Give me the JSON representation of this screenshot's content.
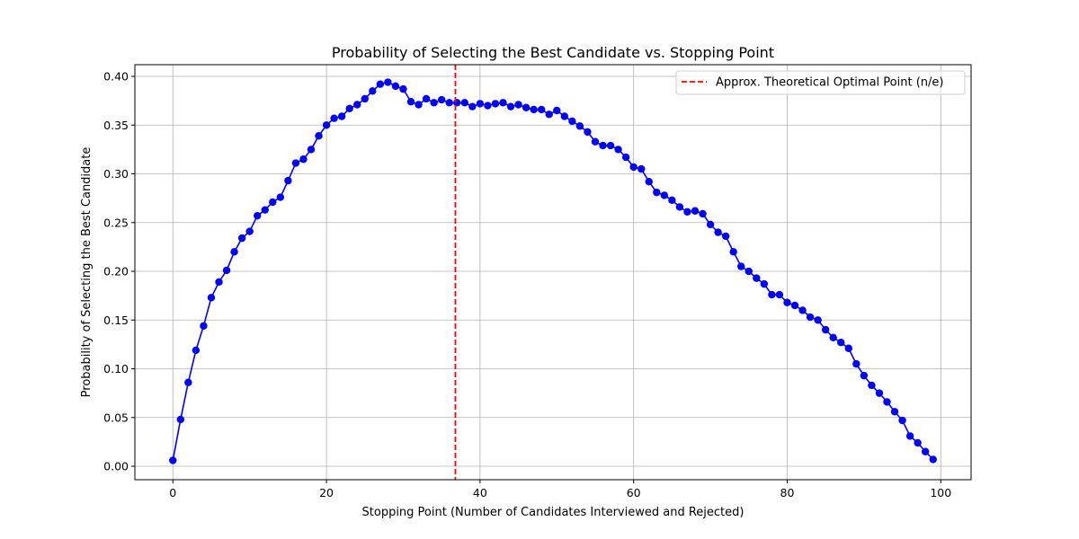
{
  "chart_data": {
    "type": "line",
    "title": "Probability of Selecting the Best Candidate vs. Stopping Point",
    "xlabel": "Stopping Point (Number of Candidates Interviewed and Rejected)",
    "ylabel": "Probability of Selecting the Best Candidate",
    "xlim": [
      -4.95,
      103.95
    ],
    "ylim": [
      -0.0138,
      0.412
    ],
    "xticks": [
      0,
      20,
      40,
      60,
      80,
      100
    ],
    "yticks": [
      0.0,
      0.05,
      0.1,
      0.15,
      0.2,
      0.25,
      0.3,
      0.35,
      0.4
    ],
    "grid": true,
    "legend_position": "top-right",
    "series": [
      {
        "name": "",
        "color": "#0000ff",
        "marker": "circle",
        "x": [
          0,
          1,
          2,
          3,
          4,
          5,
          6,
          7,
          8,
          9,
          10,
          11,
          12,
          13,
          14,
          15,
          16,
          17,
          18,
          19,
          20,
          21,
          22,
          23,
          24,
          25,
          26,
          27,
          28,
          29,
          30,
          31,
          32,
          33,
          34,
          35,
          36,
          37,
          38,
          39,
          40,
          41,
          42,
          43,
          44,
          45,
          46,
          47,
          48,
          49,
          50,
          51,
          52,
          53,
          54,
          55,
          56,
          57,
          58,
          59,
          60,
          61,
          62,
          63,
          64,
          65,
          66,
          67,
          68,
          69,
          70,
          71,
          72,
          73,
          74,
          75,
          76,
          77,
          78,
          79,
          80,
          81,
          82,
          83,
          84,
          85,
          86,
          87,
          88,
          89,
          90,
          91,
          92,
          93,
          94,
          95,
          96,
          97,
          98,
          99
        ],
        "y": [
          0.006,
          0.048,
          0.086,
          0.119,
          0.144,
          0.173,
          0.189,
          0.201,
          0.22,
          0.234,
          0.241,
          0.257,
          0.263,
          0.271,
          0.276,
          0.293,
          0.311,
          0.315,
          0.325,
          0.339,
          0.35,
          0.357,
          0.359,
          0.367,
          0.371,
          0.377,
          0.385,
          0.392,
          0.394,
          0.39,
          0.387,
          0.374,
          0.371,
          0.377,
          0.373,
          0.376,
          0.373,
          0.373,
          0.373,
          0.369,
          0.372,
          0.37,
          0.372,
          0.373,
          0.369,
          0.371,
          0.368,
          0.366,
          0.366,
          0.361,
          0.365,
          0.359,
          0.354,
          0.349,
          0.343,
          0.333,
          0.329,
          0.329,
          0.325,
          0.317,
          0.307,
          0.305,
          0.292,
          0.281,
          0.278,
          0.273,
          0.266,
          0.261,
          0.262,
          0.259,
          0.248,
          0.24,
          0.236,
          0.22,
          0.205,
          0.2,
          0.193,
          0.187,
          0.176,
          0.176,
          0.168,
          0.165,
          0.16,
          0.153,
          0.15,
          0.14,
          0.132,
          0.127,
          0.121,
          0.105,
          0.093,
          0.083,
          0.075,
          0.066,
          0.056,
          0.047,
          0.031,
          0.024,
          0.015,
          0.007
        ]
      }
    ],
    "vline": {
      "x": 36.79,
      "color": "#ff0000",
      "style": "dashed",
      "label": "Approx. Theoretical Optimal Point (n/e)"
    }
  }
}
